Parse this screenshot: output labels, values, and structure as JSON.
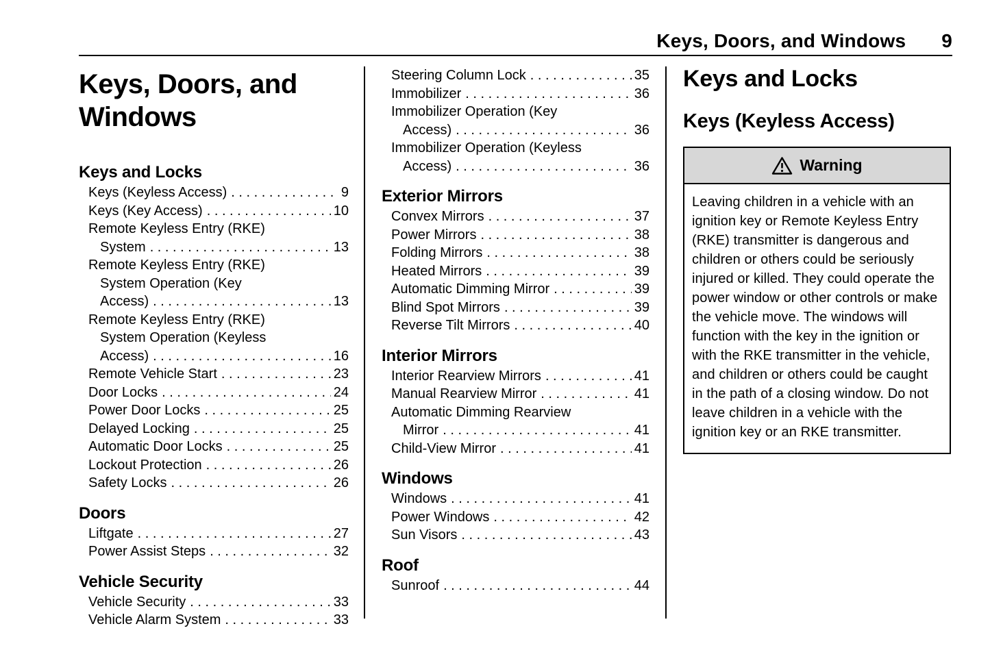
{
  "header": {
    "title": "Keys, Doors, and Windows",
    "page_number": "9"
  },
  "chapter": {
    "title_line1": "Keys, Doors, and",
    "title_line2": "Windows"
  },
  "toc_column1": {
    "sections": [
      {
        "heading": "Keys and Locks",
        "entries": [
          {
            "lines": [
              "Keys (Keyless Access)"
            ],
            "page": "9"
          },
          {
            "lines": [
              "Keys (Key Access)"
            ],
            "page": "10"
          },
          {
            "lines": [
              "Remote Keyless Entry (RKE)",
              "System"
            ],
            "page": "13"
          },
          {
            "lines": [
              "Remote Keyless Entry (RKE)",
              "System Operation (Key",
              "Access)"
            ],
            "page": "13"
          },
          {
            "lines": [
              "Remote Keyless Entry (RKE)",
              "System Operation (Keyless",
              "Access)"
            ],
            "page": "16"
          },
          {
            "lines": [
              "Remote Vehicle Start"
            ],
            "page": "23"
          },
          {
            "lines": [
              "Door Locks"
            ],
            "page": "24"
          },
          {
            "lines": [
              "Power Door Locks"
            ],
            "page": "25"
          },
          {
            "lines": [
              "Delayed Locking"
            ],
            "page": "25"
          },
          {
            "lines": [
              "Automatic Door Locks"
            ],
            "page": "25"
          },
          {
            "lines": [
              "Lockout Protection"
            ],
            "page": "26"
          },
          {
            "lines": [
              "Safety Locks"
            ],
            "page": "26"
          }
        ]
      },
      {
        "heading": "Doors",
        "entries": [
          {
            "lines": [
              "Liftgate"
            ],
            "page": "27"
          },
          {
            "lines": [
              "Power Assist Steps"
            ],
            "page": "32"
          }
        ]
      },
      {
        "heading": "Vehicle Security",
        "entries": [
          {
            "lines": [
              "Vehicle Security"
            ],
            "page": "33"
          },
          {
            "lines": [
              "Vehicle Alarm System"
            ],
            "page": "33"
          }
        ]
      }
    ]
  },
  "toc_column2": {
    "sections": [
      {
        "heading": null,
        "entries": [
          {
            "lines": [
              "Steering Column Lock"
            ],
            "page": "35"
          },
          {
            "lines": [
              "Immobilizer"
            ],
            "page": "36"
          },
          {
            "lines": [
              "Immobilizer Operation (Key",
              "Access)"
            ],
            "page": "36"
          },
          {
            "lines": [
              "Immobilizer Operation (Keyless",
              "Access)"
            ],
            "page": "36"
          }
        ]
      },
      {
        "heading": "Exterior Mirrors",
        "entries": [
          {
            "lines": [
              "Convex Mirrors"
            ],
            "page": "37"
          },
          {
            "lines": [
              "Power Mirrors"
            ],
            "page": "38"
          },
          {
            "lines": [
              "Folding Mirrors"
            ],
            "page": "38"
          },
          {
            "lines": [
              "Heated Mirrors"
            ],
            "page": "39"
          },
          {
            "lines": [
              "Automatic Dimming Mirror"
            ],
            "page": "39"
          },
          {
            "lines": [
              "Blind Spot Mirrors"
            ],
            "page": "39"
          },
          {
            "lines": [
              "Reverse Tilt Mirrors"
            ],
            "page": "40"
          }
        ]
      },
      {
        "heading": "Interior Mirrors",
        "entries": [
          {
            "lines": [
              "Interior Rearview Mirrors"
            ],
            "page": "41"
          },
          {
            "lines": [
              "Manual Rearview Mirror"
            ],
            "page": "41"
          },
          {
            "lines": [
              "Automatic Dimming Rearview",
              "Mirror"
            ],
            "page": "41"
          },
          {
            "lines": [
              "Child-View Mirror"
            ],
            "page": "41"
          }
        ]
      },
      {
        "heading": "Windows",
        "entries": [
          {
            "lines": [
              "Windows"
            ],
            "page": "41"
          },
          {
            "lines": [
              "Power Windows"
            ],
            "page": "42"
          },
          {
            "lines": [
              "Sun Visors"
            ],
            "page": "43"
          }
        ]
      },
      {
        "heading": "Roof",
        "entries": [
          {
            "lines": [
              "Sunroof"
            ],
            "page": "44"
          }
        ]
      }
    ]
  },
  "content": {
    "section_title": "Keys and Locks",
    "subsection_title": "Keys (Keyless Access)",
    "warning": {
      "icon": "warning-triangle-icon",
      "title": "Warning",
      "body": "Leaving children in a vehicle with an ignition key or Remote Keyless Entry (RKE) transmitter is dangerous and children or others could be seriously injured or killed. They could operate the power window or other controls or make the vehicle move. The windows will function with the key in the ignition or with the RKE transmitter in the vehicle, and children or others could be caught in the path of a closing window. Do not leave children in a vehicle with the ignition key or an RKE transmitter."
    }
  },
  "colors": {
    "text": "#000000",
    "background": "#ffffff",
    "rule": "#000000",
    "warning_header_bg": "#d7d7d7",
    "warning_border": "#000000"
  }
}
